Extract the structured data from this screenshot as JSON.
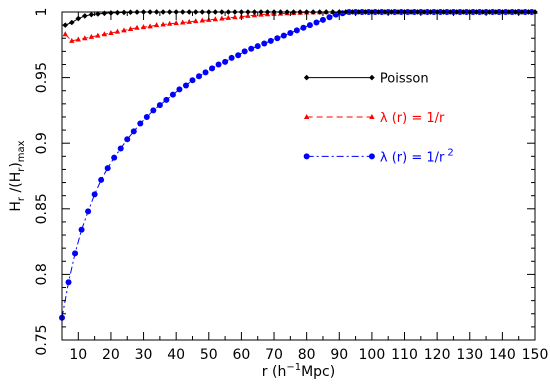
{
  "chart_data": {
    "type": "line",
    "xlabel": "r (h⁻¹Mpc)",
    "ylabel": "Hr/(Hr)max",
    "xlabel_parts": {
      "pre": "r (h",
      "sup": "−1",
      "post": "Mpc)"
    },
    "ylabel_parts": {
      "main1": "H",
      "sub1": "r",
      "main2": " /(H",
      "sub2": "r",
      "main3": ")",
      "sub3": "max"
    },
    "xlim": [
      5,
      150
    ],
    "ylim": [
      0.75,
      1.0
    ],
    "xticks": [
      10,
      20,
      30,
      40,
      50,
      60,
      70,
      80,
      90,
      100,
      110,
      120,
      130,
      140,
      150
    ],
    "yticks": [
      0.75,
      0.8,
      0.85,
      0.9,
      0.95,
      1
    ],
    "ytick_labels": [
      "0.75",
      "0.8",
      "0.85",
      "0.9",
      "0.95",
      "1"
    ],
    "grid": false,
    "legend_position": "right",
    "series": [
      {
        "name": "Poisson",
        "color": "#000000",
        "marker": "diamond",
        "line_style": "solid",
        "x": [
          6,
          8,
          10,
          12,
          14,
          16,
          18,
          20,
          22,
          24,
          26,
          28,
          30,
          32,
          34,
          36,
          38,
          40,
          42,
          44,
          46,
          48,
          50,
          52,
          54,
          56,
          58,
          60,
          62,
          64,
          66,
          68,
          70,
          72,
          74,
          76,
          78,
          80,
          82,
          84,
          86,
          88,
          90,
          92,
          94,
          96,
          98,
          100,
          102,
          104,
          106,
          108,
          110,
          112,
          114,
          116,
          118,
          120,
          122,
          124,
          126,
          128,
          130,
          132,
          134,
          136,
          138,
          140,
          142,
          144,
          146,
          148,
          150
        ],
        "y": [
          0.99,
          0.992,
          0.995,
          0.997,
          0.998,
          0.9985,
          0.999,
          0.9993,
          0.9995,
          0.9997,
          0.9998,
          0.9999,
          1,
          1,
          1,
          1,
          1,
          1,
          1,
          1,
          1,
          1,
          1,
          1,
          1,
          1,
          1,
          1,
          1,
          1,
          1,
          1,
          1,
          1,
          1,
          1,
          1,
          1,
          1,
          1,
          1,
          1,
          1,
          1,
          1,
          1,
          1,
          1,
          1,
          1,
          1,
          1,
          1,
          1,
          1,
          1,
          1,
          1,
          1,
          1,
          1,
          1,
          1,
          1,
          1,
          1,
          1,
          1,
          1,
          1,
          1,
          1,
          1
        ]
      },
      {
        "name": "λ (r) = 1/r",
        "color": "#ff0000",
        "marker": "triangle",
        "line_style": "dashed",
        "x": [
          6,
          8,
          10,
          12,
          14,
          16,
          18,
          20,
          22,
          24,
          26,
          28,
          30,
          32,
          34,
          36,
          38,
          40,
          42,
          44,
          46,
          48,
          50,
          52,
          54,
          56,
          58,
          60,
          62,
          64,
          66,
          68,
          70,
          72,
          74,
          76,
          78,
          80,
          82,
          84,
          86,
          88,
          90,
          92,
          94,
          96,
          98,
          100,
          102,
          104,
          106,
          108,
          110,
          112,
          114,
          116,
          118,
          120,
          122,
          124,
          126,
          128,
          130,
          132,
          134,
          136,
          138,
          140,
          142,
          144,
          146,
          148,
          150
        ],
        "y": [
          0.983,
          0.978,
          0.979,
          0.98,
          0.981,
          0.982,
          0.983,
          0.984,
          0.985,
          0.986,
          0.987,
          0.988,
          0.9885,
          0.989,
          0.99,
          0.9905,
          0.991,
          0.9915,
          0.992,
          0.9925,
          0.993,
          0.9935,
          0.994,
          0.9945,
          0.995,
          0.9955,
          0.996,
          0.9965,
          0.997,
          0.9975,
          0.998,
          0.9983,
          0.9986,
          0.9988,
          0.999,
          0.9992,
          0.9994,
          0.9996,
          0.9997,
          0.9998,
          0.9999,
          1,
          1,
          1,
          1,
          1,
          1,
          1,
          1,
          1,
          1,
          1,
          1,
          1,
          1,
          1,
          1,
          1,
          1,
          1,
          1,
          1,
          1,
          1,
          1,
          1,
          1,
          1,
          1,
          1,
          1,
          1,
          1
        ]
      },
      {
        "name": "λ (r) = 1/r²",
        "color": "#0000ff",
        "marker": "circle",
        "line_style": "dashdot",
        "x": [
          5,
          7,
          9,
          11,
          13,
          15,
          17,
          19,
          21,
          23,
          25,
          27,
          29,
          31,
          33,
          35,
          37,
          39,
          41,
          43,
          45,
          47,
          49,
          51,
          53,
          55,
          57,
          59,
          61,
          63,
          65,
          67,
          69,
          71,
          73,
          75,
          77,
          79,
          81,
          83,
          85,
          87,
          89,
          91,
          93,
          95,
          97,
          99,
          101,
          103,
          105,
          107,
          109,
          111,
          113,
          115,
          117,
          119,
          121,
          123,
          125,
          127,
          129,
          131,
          133,
          135,
          137,
          139,
          141,
          143,
          145,
          147,
          149
        ],
        "y": [
          0.767,
          0.794,
          0.816,
          0.834,
          0.848,
          0.861,
          0.872,
          0.881,
          0.889,
          0.896,
          0.903,
          0.909,
          0.915,
          0.92,
          0.925,
          0.929,
          0.933,
          0.937,
          0.941,
          0.944,
          0.948,
          0.951,
          0.954,
          0.957,
          0.96,
          0.962,
          0.965,
          0.967,
          0.97,
          0.972,
          0.974,
          0.976,
          0.978,
          0.98,
          0.982,
          0.984,
          0.986,
          0.988,
          0.99,
          0.992,
          0.994,
          0.996,
          0.998,
          0.999,
          1,
          1,
          1,
          1,
          1,
          1,
          1,
          1,
          1,
          1,
          1,
          1,
          1,
          1,
          1,
          1,
          1,
          1,
          1,
          1,
          1,
          1,
          1,
          1,
          1,
          1,
          1,
          1,
          1
        ]
      }
    ],
    "legend": [
      {
        "label": "Poisson",
        "color": "#000000",
        "marker": "diamond",
        "line_style": "solid"
      },
      {
        "label_main": "λ (r) = 1/r",
        "label_sup": "",
        "color": "#ff0000",
        "marker": "triangle",
        "line_style": "dashed"
      },
      {
        "label_main": "λ (r) = 1/r",
        "label_sup": "2",
        "color": "#0000ff",
        "marker": "circle",
        "line_style": "dashdot"
      }
    ]
  }
}
